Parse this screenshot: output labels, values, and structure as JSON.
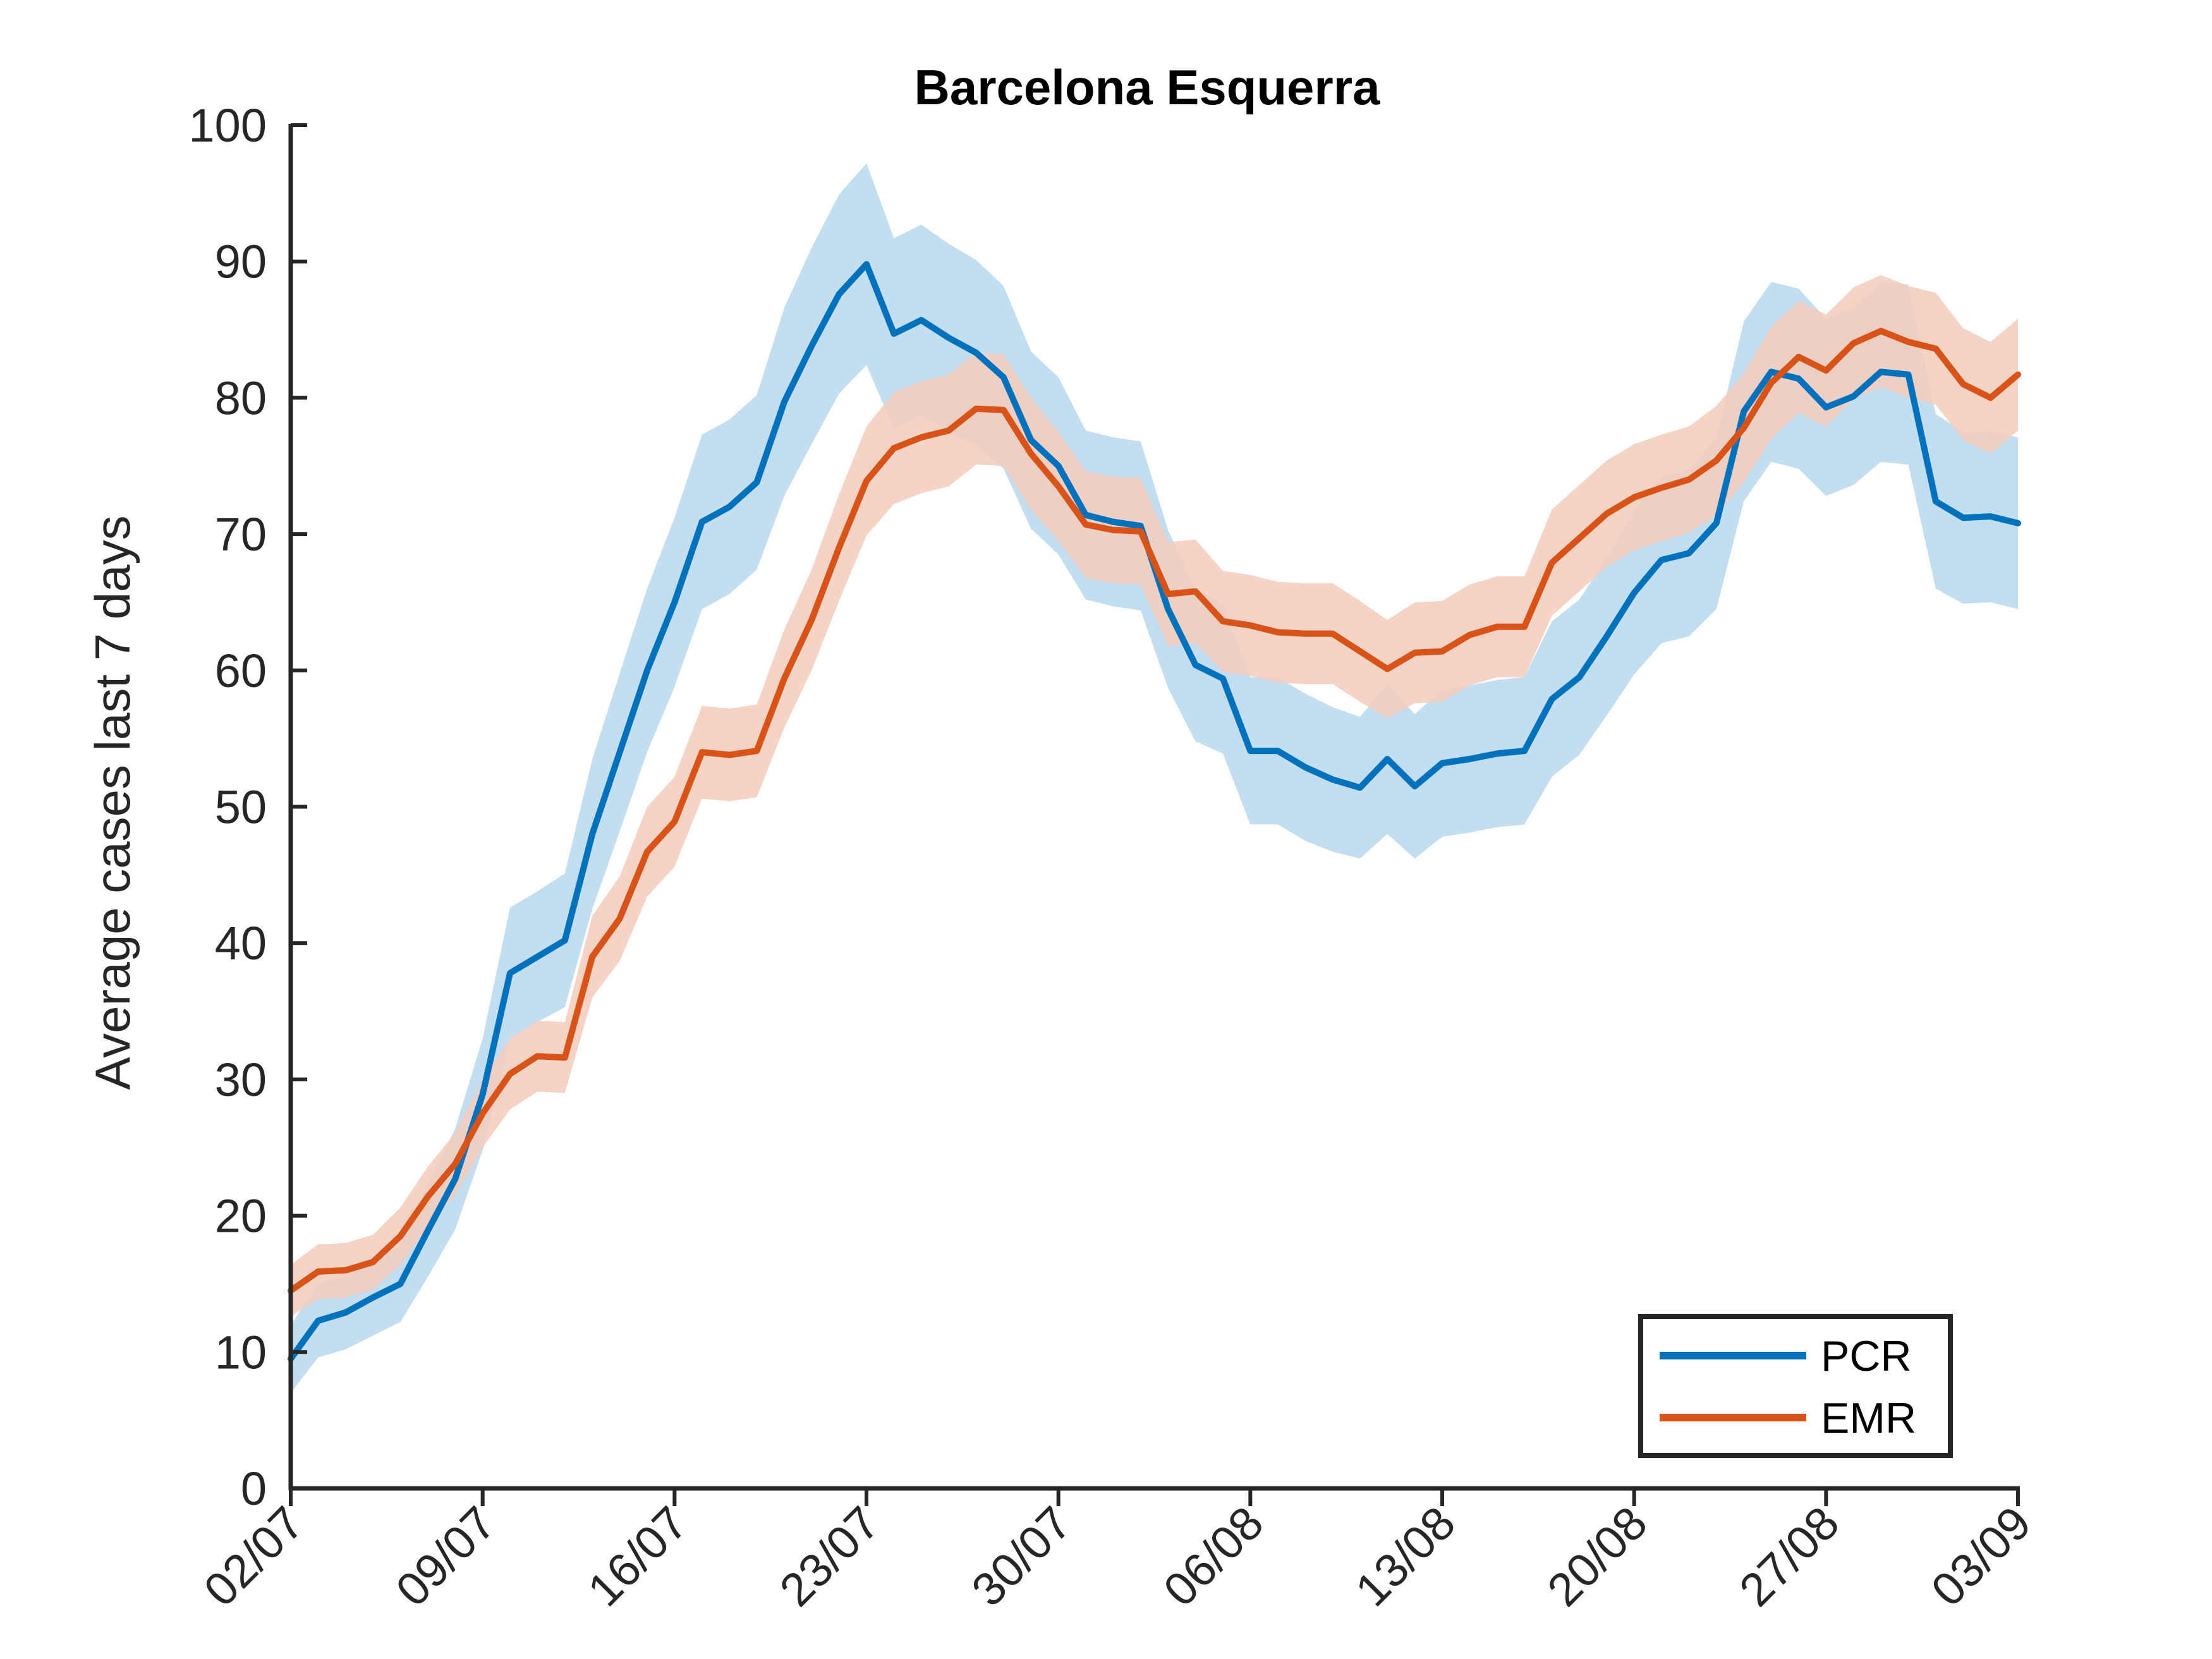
{
  "chart_data": {
    "type": "line",
    "title": "Barcelona Esquerra",
    "xlabel": "",
    "ylabel": "Average cases last 7 days",
    "xticks": [
      "02/07",
      "09/07",
      "16/07",
      "23/07",
      "30/07",
      "06/08",
      "13/08",
      "20/08",
      "27/08",
      "03/09"
    ],
    "yticks": [
      "0",
      "10",
      "20",
      "30",
      "40",
      "50",
      "60",
      "70",
      "80",
      "90",
      "100"
    ],
    "ylim": [
      0,
      100
    ],
    "xlim": [
      "02/07",
      "03/09"
    ],
    "grid": false,
    "legend_position": "bottom-right",
    "series": [
      {
        "name": "PCR",
        "color": "#0072BD",
        "band_color": "#b9d8ee",
        "values": [
          9.5,
          12.3,
          12.9,
          14.0,
          15.0,
          18.9,
          22.7,
          28.9,
          37.8,
          39.0,
          40.2,
          48.0,
          54.0,
          60.0,
          65.0,
          70.9,
          72.0,
          73.8,
          79.7,
          83.8,
          87.6,
          89.8,
          84.7,
          85.7,
          84.4,
          83.3,
          81.5,
          76.9,
          75.0,
          71.4,
          70.9,
          70.6,
          64.5,
          60.4,
          59.4,
          54.1,
          54.1,
          52.9,
          52.0,
          51.4,
          53.5,
          51.5,
          53.2,
          53.5,
          53.9,
          54.1,
          57.9,
          59.5,
          62.5,
          65.7,
          68.1,
          68.6,
          70.8,
          79.0,
          81.9,
          81.4,
          79.3,
          80.1,
          81.9,
          81.7,
          72.4,
          71.2,
          71.3,
          70.8
        ],
        "lower": [
          7.0,
          9.6,
          10.2,
          11.2,
          12.2,
          15.5,
          19.0,
          24.8,
          33.0,
          34.2,
          35.3,
          42.5,
          48.2,
          54.0,
          58.8,
          64.5,
          65.6,
          67.4,
          72.8,
          76.6,
          80.3,
          82.4,
          77.7,
          78.7,
          77.5,
          76.5,
          74.8,
          70.4,
          68.5,
          65.2,
          64.7,
          64.4,
          58.7,
          54.8,
          53.9,
          48.7,
          48.7,
          47.5,
          46.7,
          46.2,
          48.0,
          46.2,
          47.8,
          48.1,
          48.5,
          48.7,
          52.2,
          53.8,
          56.7,
          59.7,
          62.0,
          62.5,
          64.5,
          72.4,
          75.3,
          74.8,
          72.8,
          73.6,
          75.3,
          75.1,
          66.0,
          64.9,
          65.0,
          64.5
        ],
        "upper": [
          12.0,
          15.0,
          15.6,
          16.8,
          17.8,
          22.3,
          26.4,
          33.0,
          42.6,
          43.8,
          45.1,
          53.5,
          59.8,
          66.0,
          71.2,
          77.3,
          78.4,
          80.2,
          86.6,
          91.0,
          94.9,
          97.2,
          91.7,
          92.7,
          91.3,
          90.1,
          88.2,
          83.4,
          81.5,
          77.6,
          77.1,
          76.8,
          70.3,
          66.0,
          64.9,
          59.5,
          59.5,
          58.3,
          57.3,
          56.6,
          59.0,
          56.8,
          58.6,
          58.9,
          59.3,
          59.5,
          63.6,
          65.2,
          68.3,
          71.7,
          74.2,
          74.7,
          77.1,
          85.6,
          88.5,
          88.0,
          85.8,
          86.6,
          88.5,
          88.3,
          78.8,
          77.5,
          77.6,
          77.1
        ]
      },
      {
        "name": "EMR",
        "color": "#D95319",
        "band_color": "#f5cdbb",
        "values": [
          14.5,
          15.9,
          16.0,
          16.6,
          18.5,
          21.4,
          23.8,
          27.5,
          30.4,
          31.7,
          31.6,
          39.0,
          41.8,
          46.7,
          48.9,
          54.0,
          53.8,
          54.1,
          59.4,
          63.7,
          69.0,
          73.9,
          76.3,
          77.1,
          77.6,
          79.2,
          79.1,
          75.9,
          73.5,
          70.7,
          70.3,
          70.2,
          65.6,
          65.8,
          63.6,
          63.3,
          62.8,
          62.7,
          62.7,
          61.4,
          60.1,
          61.3,
          61.4,
          62.6,
          63.2,
          63.2,
          67.9,
          69.7,
          71.5,
          72.7,
          73.4,
          74.0,
          75.4,
          77.8,
          81.1,
          83.0,
          82.0,
          84.0,
          84.9,
          84.1,
          83.6,
          81.0,
          80.0,
          81.7
        ],
        "lower": [
          12.6,
          13.9,
          14.0,
          14.6,
          16.4,
          19.2,
          21.5,
          25.0,
          27.8,
          29.1,
          29.0,
          36.0,
          38.7,
          43.4,
          45.6,
          50.6,
          50.4,
          50.7,
          55.8,
          60.0,
          65.1,
          69.9,
          72.2,
          73.0,
          73.5,
          75.1,
          75.0,
          71.8,
          69.5,
          66.8,
          66.4,
          66.3,
          61.8,
          62.0,
          59.9,
          59.6,
          59.1,
          59.0,
          59.0,
          57.7,
          56.5,
          57.6,
          57.7,
          58.9,
          59.5,
          59.5,
          64.0,
          65.8,
          67.6,
          68.8,
          69.5,
          70.1,
          71.4,
          73.8,
          77.0,
          78.9,
          77.9,
          79.9,
          80.8,
          80.0,
          79.5,
          76.9,
          75.9,
          77.6
        ],
        "upper": [
          16.4,
          17.9,
          18.0,
          18.6,
          20.6,
          23.6,
          26.1,
          30.0,
          33.0,
          34.3,
          34.2,
          42.0,
          44.9,
          50.0,
          52.2,
          57.4,
          57.2,
          57.5,
          63.0,
          67.4,
          72.9,
          77.9,
          80.4,
          81.2,
          81.7,
          83.3,
          83.2,
          80.0,
          77.5,
          74.6,
          74.2,
          74.1,
          69.4,
          69.6,
          67.3,
          67.0,
          66.5,
          66.4,
          66.4,
          65.1,
          63.7,
          65.0,
          65.1,
          66.3,
          66.9,
          66.9,
          71.8,
          73.6,
          75.4,
          76.6,
          77.3,
          77.9,
          79.4,
          81.8,
          85.2,
          87.1,
          86.1,
          88.1,
          89.0,
          88.2,
          87.7,
          85.1,
          84.1,
          85.8
        ]
      }
    ]
  }
}
